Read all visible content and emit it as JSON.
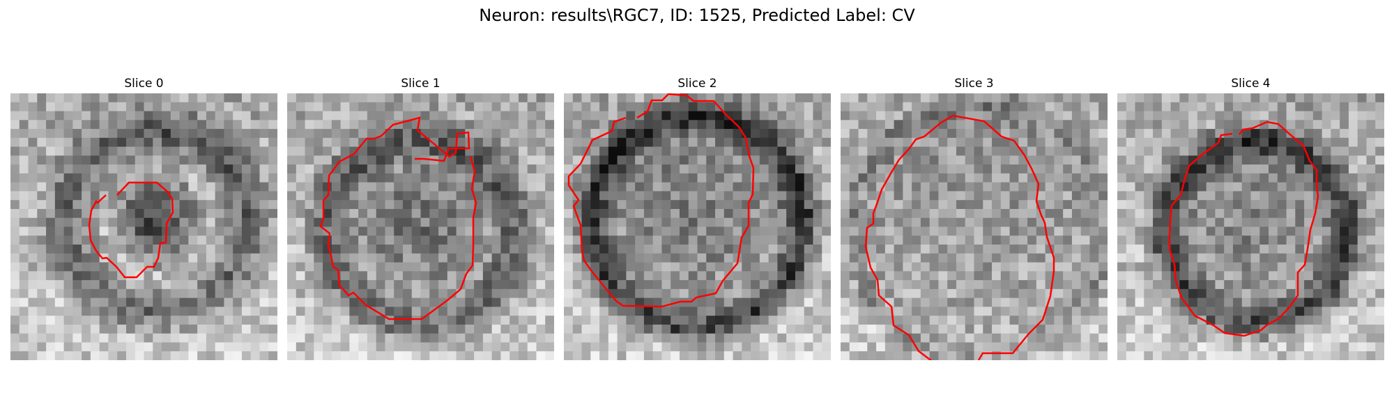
{
  "figure": {
    "title": "Neuron: results\\RGC7, ID: 1525, Predicted Label: CV",
    "contour_color": "#ff0000"
  },
  "slices": [
    {
      "title": "Slice 0",
      "contour_description": "small irregular outline around dark central blob"
    },
    {
      "title": "Slice 1",
      "contour_description": "medium outline around cell body"
    },
    {
      "title": "Slice 2",
      "contour_description": "large outline covering most of panel"
    },
    {
      "title": "Slice 3",
      "contour_description": "large outline with gap at bottom"
    },
    {
      "title": "Slice 4",
      "contour_description": "medium outline around cell body"
    }
  ]
}
